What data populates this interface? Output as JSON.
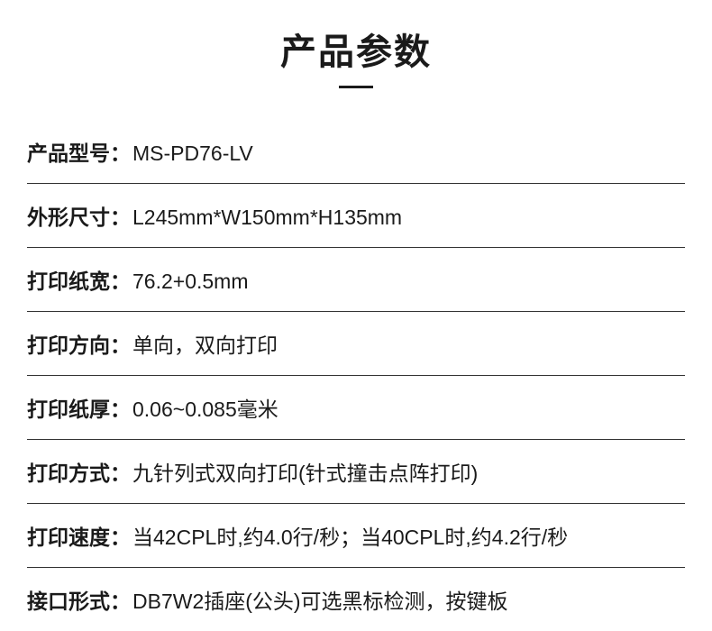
{
  "title": "产品参数",
  "specs": [
    {
      "label": "产品型号：",
      "value": "MS-PD76-LV"
    },
    {
      "label": "外形尺寸：",
      "value": "L245mm*W150mm*H135mm"
    },
    {
      "label": "打印纸宽：",
      "value": "76.2+0.5mm"
    },
    {
      "label": "打印方向：",
      "value": "单向，双向打印"
    },
    {
      "label": "打印纸厚：",
      "value": "0.06~0.085毫米"
    },
    {
      "label": "打印方式：",
      "value": "九针列式双向打印(针式撞击点阵打印)"
    },
    {
      "label": "打印速度：",
      "value": "当42CPL时,约4.0行/秒；当40CPL时,约4.2行/秒"
    },
    {
      "label": "接口形式：",
      "value": "DB7W2插座(公头)可选黑标检测，按键板"
    }
  ],
  "styles": {
    "background_color": "#ffffff",
    "text_color": "#1a1a1a",
    "divider_color": "#333333",
    "title_fontsize": 40,
    "title_fontweight": 700,
    "label_fontsize": 23,
    "label_fontweight": 700,
    "value_fontsize": 23,
    "value_fontweight": 400,
    "row_padding_vertical": 18,
    "title_underline_width": 38,
    "title_underline_height": 3
  }
}
